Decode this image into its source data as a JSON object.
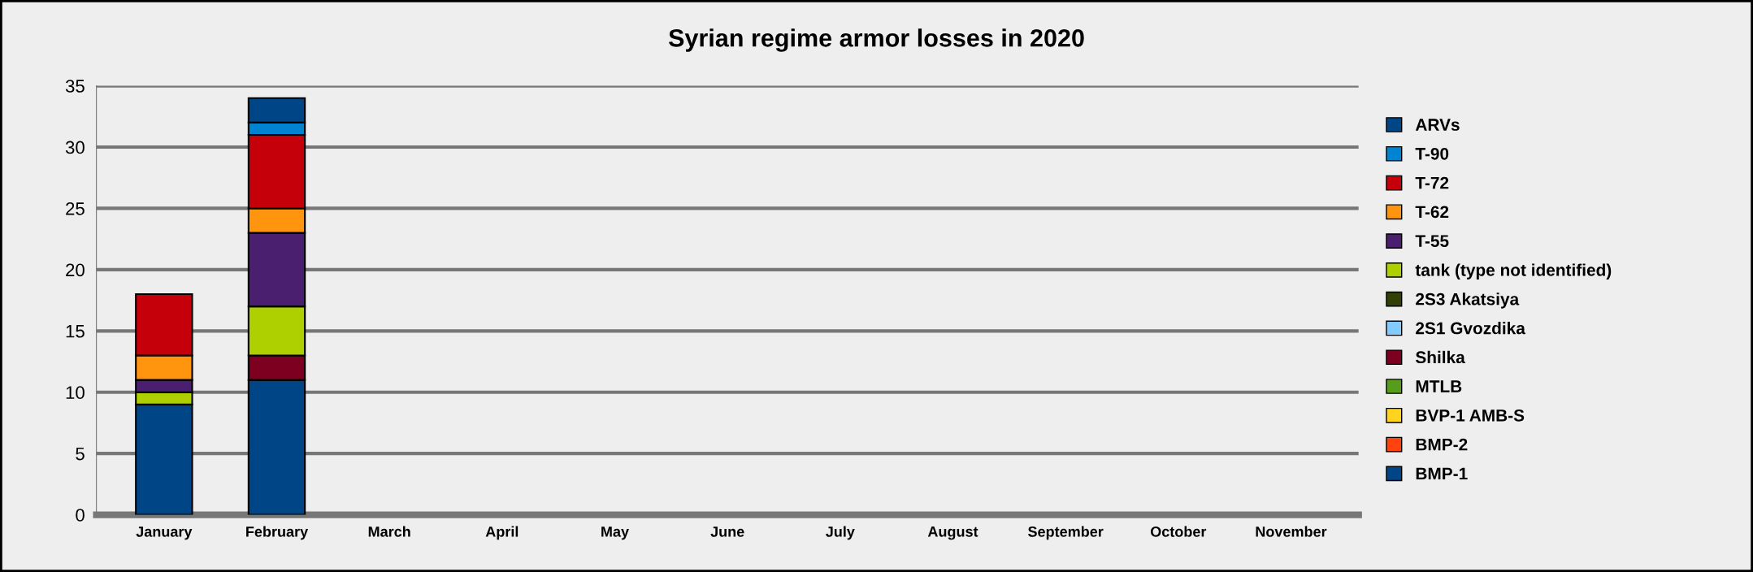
{
  "chart_data": {
    "type": "bar",
    "title": "Syrian regime armor losses in 2020",
    "stacked": true,
    "grid": "y",
    "legend": "right",
    "categories": [
      "January",
      "February",
      "March",
      "April",
      "May",
      "June",
      "July",
      "August",
      "September",
      "October",
      "November"
    ],
    "ylim": [
      0,
      35
    ],
    "yticks": [
      0,
      5,
      10,
      15,
      20,
      25,
      30,
      35
    ],
    "series": [
      {
        "name": "BMP-1",
        "color": "#004586",
        "values": [
          9,
          11,
          0,
          0,
          0,
          0,
          0,
          0,
          0,
          0,
          0
        ]
      },
      {
        "name": "BMP-2",
        "color": "#ff420e",
        "values": [
          0,
          0,
          0,
          0,
          0,
          0,
          0,
          0,
          0,
          0,
          0
        ]
      },
      {
        "name": "BVP-1 AMB-S",
        "color": "#ffd320",
        "values": [
          0,
          0,
          0,
          0,
          0,
          0,
          0,
          0,
          0,
          0,
          0
        ]
      },
      {
        "name": "MTLB",
        "color": "#579d1c",
        "values": [
          0,
          0,
          0,
          0,
          0,
          0,
          0,
          0,
          0,
          0,
          0
        ]
      },
      {
        "name": "Shilka",
        "color": "#7e0021",
        "values": [
          0,
          2,
          0,
          0,
          0,
          0,
          0,
          0,
          0,
          0,
          0
        ]
      },
      {
        "name": "2S1 Gvozdika",
        "color": "#83caff",
        "values": [
          0,
          0,
          0,
          0,
          0,
          0,
          0,
          0,
          0,
          0,
          0
        ]
      },
      {
        "name": "2S3 Akatsiya",
        "color": "#314004",
        "values": [
          0,
          0,
          0,
          0,
          0,
          0,
          0,
          0,
          0,
          0,
          0
        ]
      },
      {
        "name": "tank (type not identified)",
        "color": "#aecf00",
        "values": [
          1,
          4,
          0,
          0,
          0,
          0,
          0,
          0,
          0,
          0,
          0
        ]
      },
      {
        "name": "T-55",
        "color": "#4b1f6f",
        "values": [
          1,
          6,
          0,
          0,
          0,
          0,
          0,
          0,
          0,
          0,
          0
        ]
      },
      {
        "name": "T-62",
        "color": "#ff950e",
        "values": [
          2,
          2,
          0,
          0,
          0,
          0,
          0,
          0,
          0,
          0,
          0
        ]
      },
      {
        "name": "T-72",
        "color": "#c5000b",
        "values": [
          5,
          6,
          0,
          0,
          0,
          0,
          0,
          0,
          0,
          0,
          0
        ]
      },
      {
        "name": "T-90",
        "color": "#0084d1",
        "values": [
          0,
          1,
          0,
          0,
          0,
          0,
          0,
          0,
          0,
          0,
          0
        ]
      },
      {
        "name": "ARVs",
        "color": "#004586",
        "values": [
          0,
          2,
          0,
          0,
          0,
          0,
          0,
          0,
          0,
          0,
          0
        ]
      }
    ]
  }
}
